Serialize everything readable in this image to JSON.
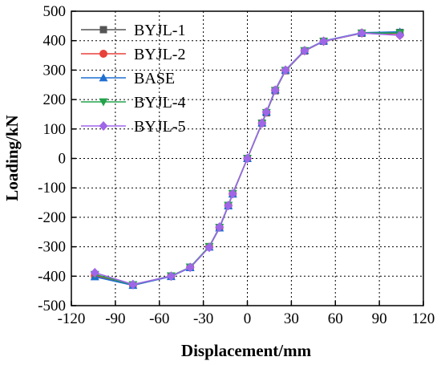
{
  "chart_data": {
    "type": "line",
    "xlabel": "Displacement/mm",
    "ylabel": "Loading/kN",
    "xlim": [
      -120,
      120
    ],
    "ylim": [
      -500,
      500
    ],
    "x_ticks": [
      -120,
      -90,
      -60,
      -30,
      0,
      30,
      60,
      90,
      120
    ],
    "y_ticks": [
      500,
      400,
      300,
      200,
      100,
      0,
      -100,
      -200,
      -300,
      -400,
      -500
    ],
    "x_tick_labels": [
      "-120",
      "-90",
      "-60",
      "-30",
      "0",
      "30",
      "60",
      "90",
      "120"
    ],
    "y_tick_labels": [
      "500",
      "400",
      "300",
      "200",
      "100",
      "0",
      "-100",
      "-200",
      "-300",
      "-400",
      "-500"
    ],
    "grid": "dotted",
    "legend_position": "top-left",
    "series": [
      {
        "name": "BYJL-1",
        "color": "#555555",
        "marker": "square",
        "points": [
          [
            -104,
            -400
          ],
          [
            -78,
            -430
          ],
          [
            -52,
            -400
          ],
          [
            -39,
            -370
          ],
          [
            -26,
            -300
          ],
          [
            -19,
            -235
          ],
          [
            -13,
            -160
          ],
          [
            -10,
            -120
          ],
          [
            0,
            0
          ],
          [
            10,
            120
          ],
          [
            13,
            155
          ],
          [
            19,
            230
          ],
          [
            26,
            298
          ],
          [
            39,
            365
          ],
          [
            52,
            398
          ],
          [
            78,
            425
          ],
          [
            104,
            428
          ]
        ]
      },
      {
        "name": "BYJL-2",
        "color": "#e8413b",
        "marker": "circle",
        "points": [
          [
            -104,
            -398
          ],
          [
            -78,
            -430
          ],
          [
            -52,
            -400
          ],
          [
            -39,
            -370
          ],
          [
            -26,
            -300
          ],
          [
            -19,
            -235
          ],
          [
            -13,
            -160
          ],
          [
            -10,
            -120
          ],
          [
            0,
            0
          ],
          [
            10,
            120
          ],
          [
            13,
            157
          ],
          [
            19,
            232
          ],
          [
            26,
            299
          ],
          [
            39,
            366
          ],
          [
            52,
            398
          ],
          [
            78,
            426
          ],
          [
            104,
            420
          ]
        ]
      },
      {
        "name": "BASE",
        "color": "#1f6fd1",
        "marker": "triangle-up",
        "points": [
          [
            -104,
            -402
          ],
          [
            -78,
            -431
          ],
          [
            -52,
            -401
          ],
          [
            -39,
            -371
          ],
          [
            -26,
            -301
          ],
          [
            -19,
            -236
          ],
          [
            -13,
            -161
          ],
          [
            -10,
            -121
          ],
          [
            0,
            0
          ],
          [
            10,
            121
          ],
          [
            13,
            158
          ],
          [
            19,
            233
          ],
          [
            26,
            300
          ],
          [
            39,
            367
          ],
          [
            52,
            399
          ],
          [
            78,
            427
          ],
          [
            104,
            430
          ]
        ]
      },
      {
        "name": "BYJL-4",
        "color": "#22a34b",
        "marker": "triangle-down",
        "points": [
          [
            -104,
            -394
          ],
          [
            -78,
            -429
          ],
          [
            -52,
            -399
          ],
          [
            -39,
            -369
          ],
          [
            -26,
            -299
          ],
          [
            -19,
            -234
          ],
          [
            -13,
            -159
          ],
          [
            -10,
            -119
          ],
          [
            0,
            0
          ],
          [
            10,
            119
          ],
          [
            13,
            156
          ],
          [
            19,
            231
          ],
          [
            26,
            299
          ],
          [
            39,
            366
          ],
          [
            52,
            398
          ],
          [
            78,
            426
          ],
          [
            104,
            426
          ]
        ]
      },
      {
        "name": "BYJL-5",
        "color": "#a066e8",
        "marker": "diamond",
        "points": [
          [
            -104,
            -388
          ],
          [
            -78,
            -428
          ],
          [
            -52,
            -400
          ],
          [
            -39,
            -370
          ],
          [
            -26,
            -302
          ],
          [
            -19,
            -233
          ],
          [
            -13,
            -160
          ],
          [
            -10,
            -120
          ],
          [
            0,
            0
          ],
          [
            10,
            120
          ],
          [
            13,
            158
          ],
          [
            19,
            232
          ],
          [
            26,
            300
          ],
          [
            39,
            366
          ],
          [
            52,
            398
          ],
          [
            78,
            426
          ],
          [
            104,
            418
          ]
        ]
      }
    ]
  }
}
